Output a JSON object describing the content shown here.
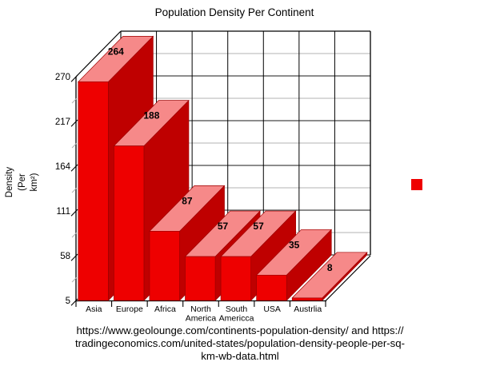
{
  "title": "Population Density Per Continent",
  "y_axis_title": "Density\n(Per\nkm²)",
  "legend": {
    "swatch_color": "#ee0000",
    "label": ""
  },
  "caption_lines": [
    "https://www.geolounge.com/continents-population-density/ and https://",
    "tradingeconomics.com/united-states/population-density-people-per-sq-",
    "km-wb-data.html"
  ],
  "chart_data": {
    "type": "bar",
    "projection": "3d",
    "title": "Population Density Per Continent",
    "categories": [
      "Asia",
      "Europe",
      "Africa",
      "North America",
      "South Americca",
      "USA",
      "Austrlia"
    ],
    "category_label_lines": [
      [
        "Asia"
      ],
      [
        "Europe"
      ],
      [
        "Africa"
      ],
      [
        "North",
        "America"
      ],
      [
        "South",
        "Americca"
      ],
      [
        "USA"
      ],
      [
        "Austrlia"
      ]
    ],
    "values": [
      264,
      188,
      87,
      57,
      57,
      35,
      8
    ],
    "data_labels": [
      "264",
      "188",
      "87",
      "57",
      "57",
      "35",
      "8"
    ],
    "xlabel": "",
    "ylabel": "Density (Per km²)",
    "ylim": [
      5,
      270
    ],
    "yticks": [
      5,
      58,
      111,
      164,
      217,
      270
    ],
    "grid": true,
    "legend_position": "right",
    "colors": {
      "bar_front": "#ee0000",
      "bar_side": "#bf0000",
      "bar_top": "#f68989",
      "bar_edge": "#9e0000",
      "grid_major": "#1a1a1a",
      "grid_minor": "#b3b3b3",
      "frame": "#000000",
      "text": "#000000"
    }
  }
}
